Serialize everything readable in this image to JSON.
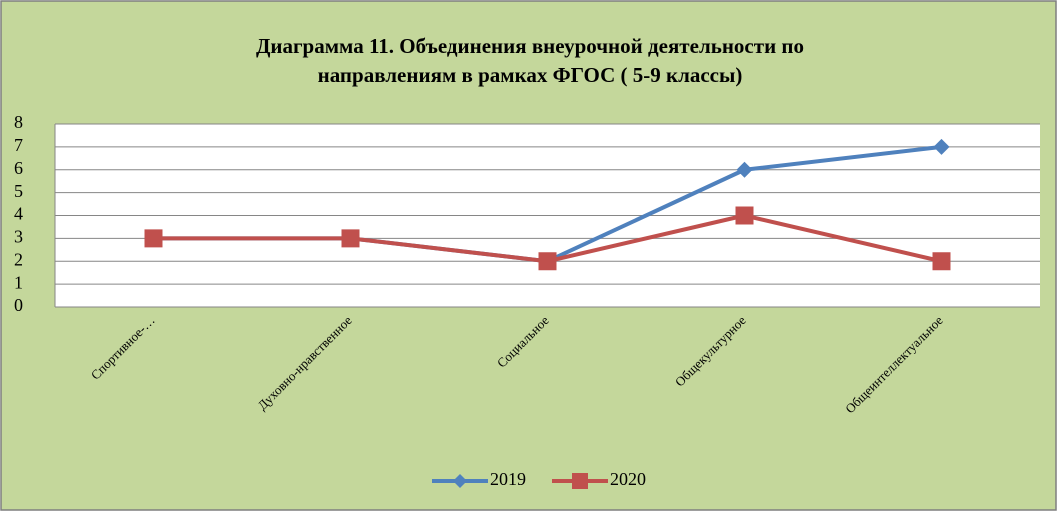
{
  "chart_data": {
    "type": "line",
    "title": [
      "Диаграмма 11. Объединения внеурочной деятельности по",
      "направлениям в рамках ФГОС ( 5-9 классы)"
    ],
    "categories": [
      "Спортивное-…",
      "Духовно-нравственное",
      "Социальное",
      "Общекультурное",
      "Общеинтеллектуальное"
    ],
    "series": [
      {
        "name": "2019",
        "color": "#4f81bd",
        "marker": "diamond",
        "values": [
          3,
          3,
          2,
          6,
          7
        ]
      },
      {
        "name": "2020",
        "color": "#c0504d",
        "marker": "square",
        "values": [
          3,
          3,
          2,
          4,
          2
        ]
      }
    ],
    "ylim": [
      0,
      8
    ],
    "yticks": [
      0,
      1,
      2,
      3,
      4,
      5,
      6,
      7,
      8
    ],
    "grid": true,
    "legend": "bottom"
  }
}
